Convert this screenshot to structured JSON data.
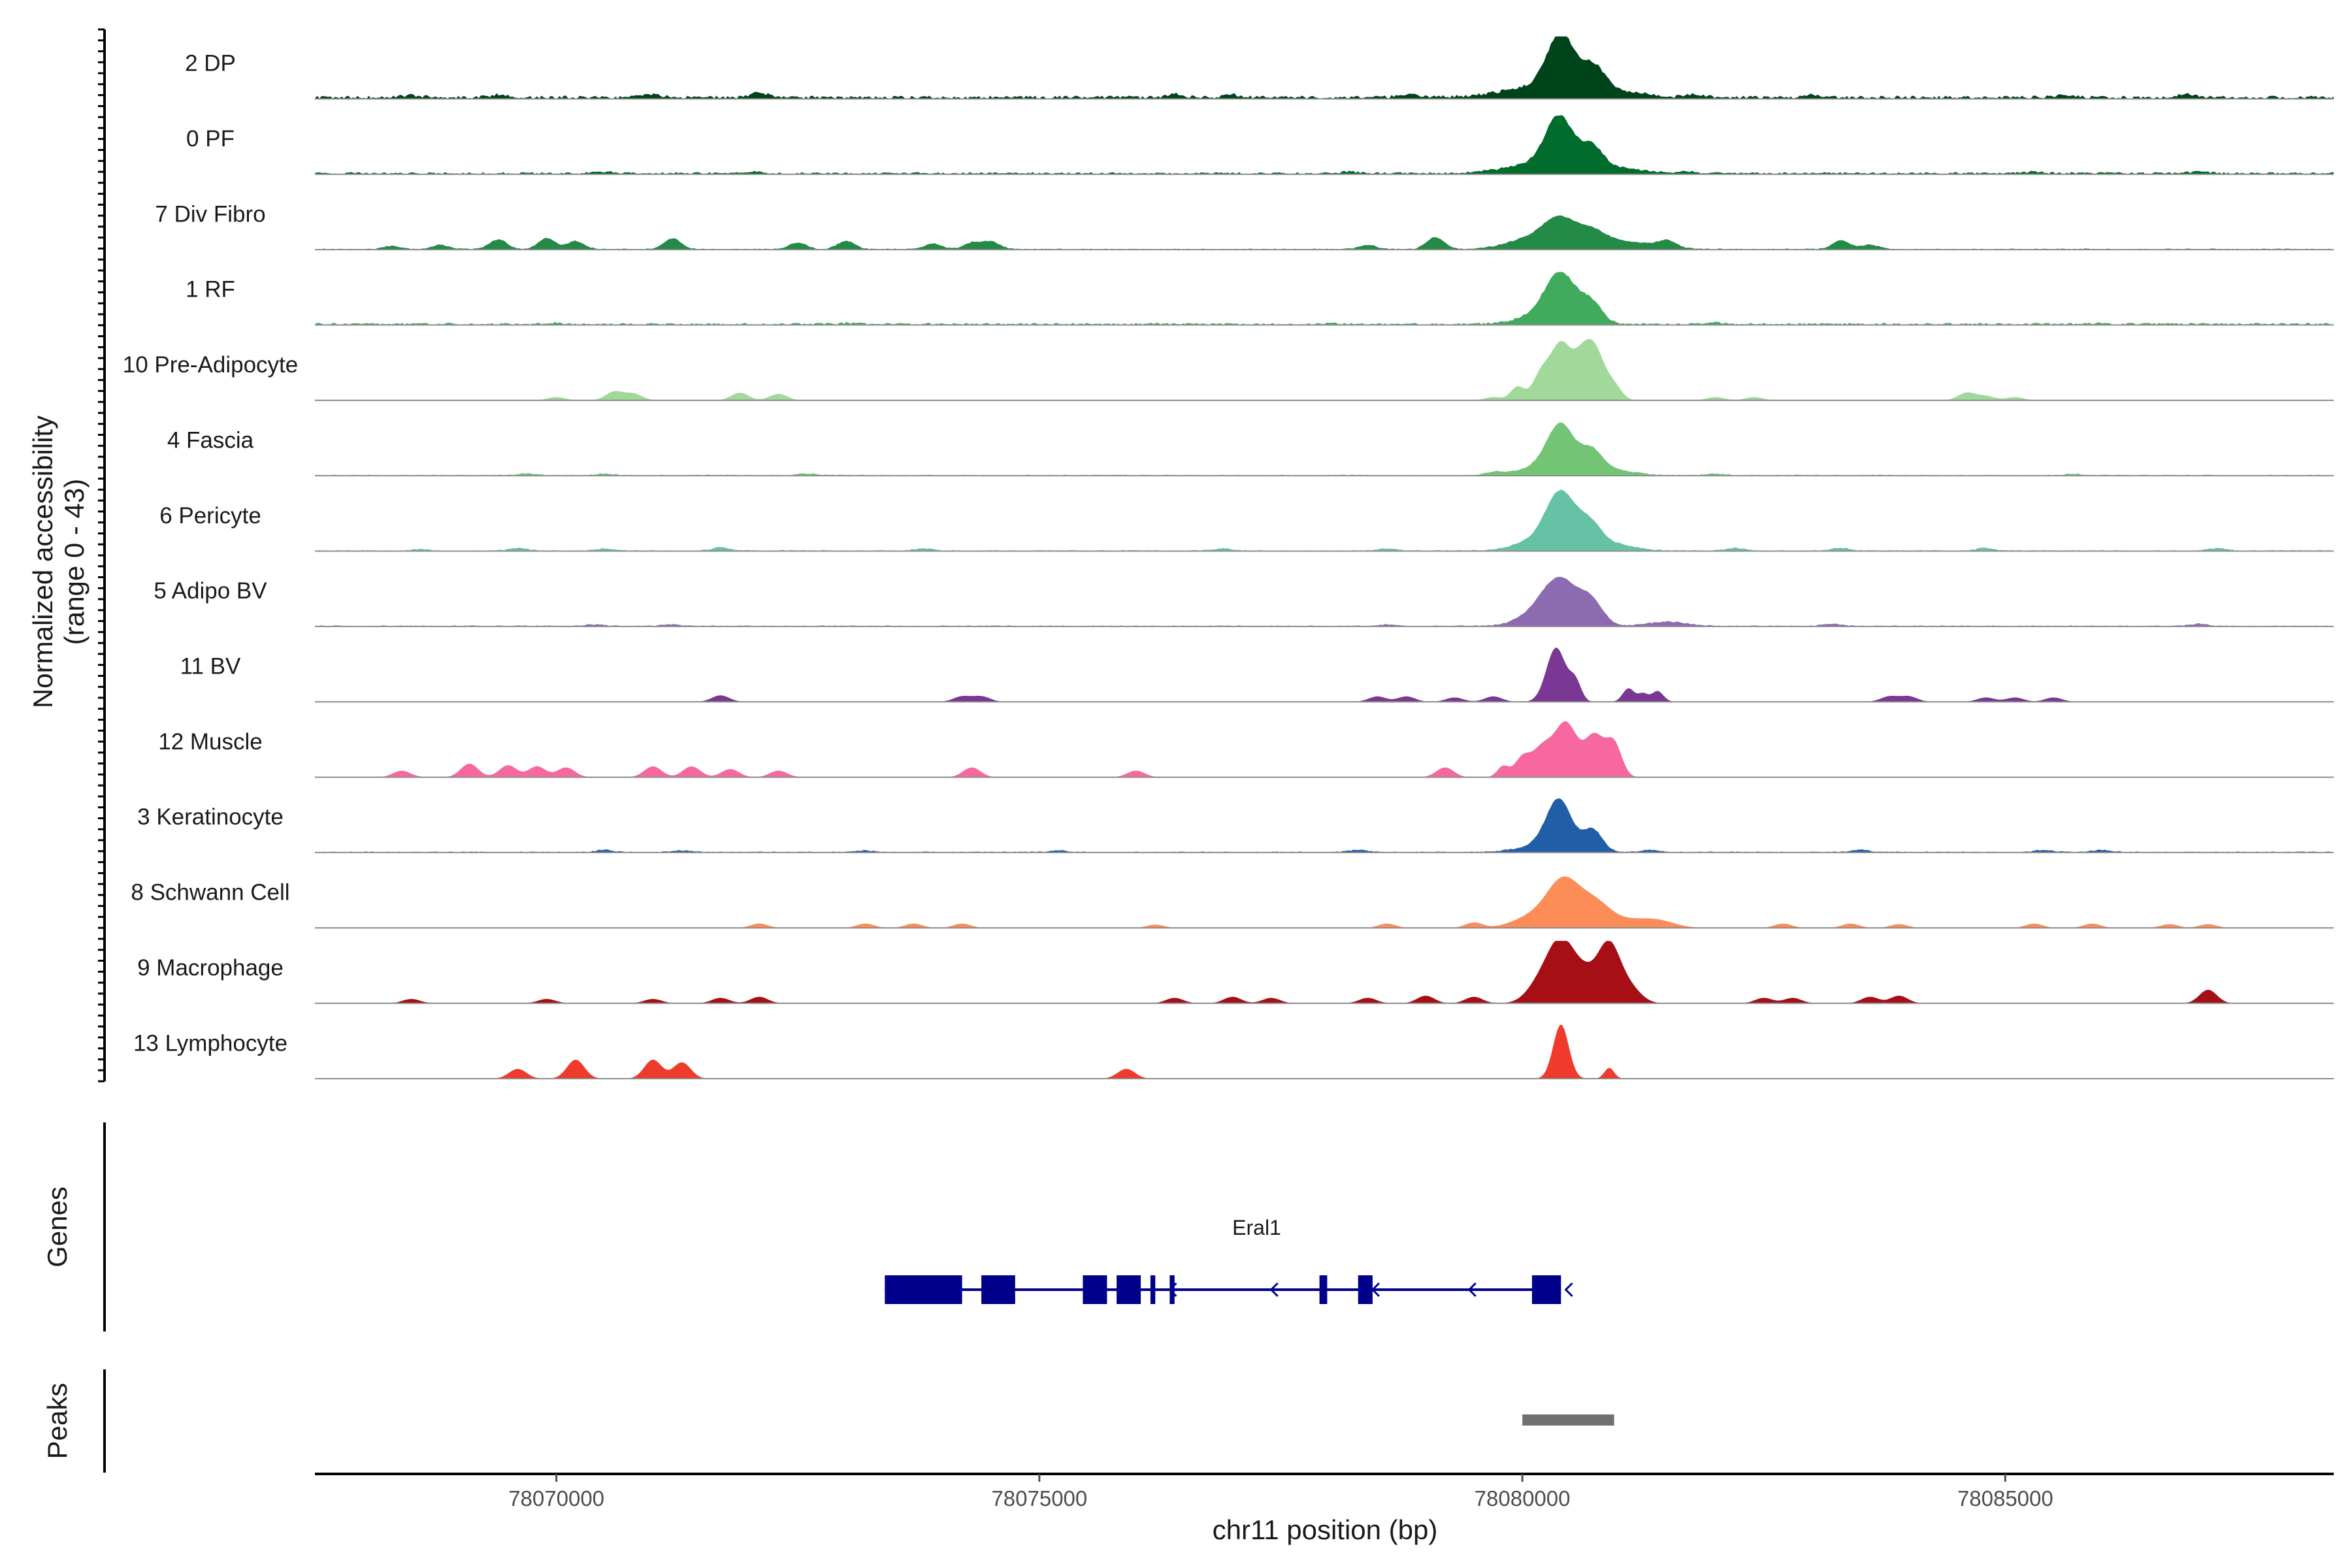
{
  "chart_data": {
    "type": "area",
    "chromosome": "chr11",
    "xlim": [
      78067500,
      78088400
    ],
    "xlabel": "chr11 position (bp)",
    "x_ticks": [
      78070000,
      78075000,
      78080000,
      78085000
    ],
    "x_tick_labels": [
      "78070000",
      "78075000",
      "78080000",
      "78085000"
    ],
    "coverage_panel": {
      "ylabel_line1": "Normalized accessibility",
      "ylabel_line2": "(range 0 - 43)",
      "ylim": [
        0,
        43
      ]
    },
    "tracks": [
      {
        "label": "2 DP",
        "color": "#00441b",
        "peaks": [
          [
            78080400,
            1.0,
            140
          ],
          [
            78080740,
            0.42,
            110
          ],
          [
            78080200,
            0.2,
            400
          ],
          [
            78080900,
            0.12,
            300
          ]
        ],
        "baseline": 0.06,
        "background": [
          [
            78068500,
            0.04
          ],
          [
            78069400,
            0.05
          ],
          [
            78071000,
            0.05
          ],
          [
            78072100,
            0.08
          ],
          [
            78076400,
            0.06
          ],
          [
            78077000,
            0.05
          ],
          [
            78078800,
            0.05
          ],
          [
            78081800,
            0.06
          ],
          [
            78083000,
            0.05
          ],
          [
            78085600,
            0.05
          ],
          [
            78086900,
            0.06
          ]
        ]
      },
      {
        "label": "0 PF",
        "color": "#006d2c",
        "peaks": [
          [
            78080380,
            0.9,
            140
          ],
          [
            78080720,
            0.38,
            110
          ],
          [
            78080200,
            0.18,
            350
          ],
          [
            78080900,
            0.1,
            300
          ]
        ],
        "baseline": 0.04,
        "background": [
          [
            78070500,
            0.03
          ],
          [
            78072000,
            0.03
          ],
          [
            78078200,
            0.03
          ],
          [
            78081700,
            0.04
          ],
          [
            78085300,
            0.03
          ],
          [
            78087000,
            0.03
          ]
        ]
      },
      {
        "label": "7 Div Fibro",
        "color": "#238b45",
        "peaks": [
          [
            78080380,
            0.45,
            160
          ],
          [
            78080700,
            0.25,
            150
          ],
          [
            78080100,
            0.2,
            250
          ],
          [
            78081000,
            0.15,
            350
          ]
        ],
        "baseline": 0.02,
        "background": [
          [
            78068300,
            0.06
          ],
          [
            78068800,
            0.08
          ],
          [
            78069400,
            0.18
          ],
          [
            78069900,
            0.2
          ],
          [
            78070200,
            0.15
          ],
          [
            78071200,
            0.2
          ],
          [
            78072500,
            0.12
          ],
          [
            78073000,
            0.15
          ],
          [
            78073900,
            0.1
          ],
          [
            78074300,
            0.12
          ],
          [
            78074500,
            0.14
          ],
          [
            78078400,
            0.08
          ],
          [
            78079100,
            0.22
          ],
          [
            78081500,
            0.12
          ],
          [
            78083300,
            0.16
          ],
          [
            78083600,
            0.08
          ]
        ]
      },
      {
        "label": "1 RF",
        "color": "#41ab5d",
        "peaks": [
          [
            78080400,
            0.85,
            160
          ],
          [
            78080720,
            0.35,
            110
          ],
          [
            78080200,
            0.15,
            250
          ]
        ],
        "baseline": 0.04,
        "background": [
          [
            78070000,
            0.02
          ],
          [
            78073000,
            0.02
          ],
          [
            78078000,
            0.02
          ],
          [
            78082000,
            0.02
          ],
          [
            78086000,
            0.02
          ]
        ]
      },
      {
        "label": "10 Pre-Adipocyte",
        "color": "#a1d99b",
        "peaks": [
          [
            78080400,
            1.0,
            100
          ],
          [
            78080750,
            0.9,
            100
          ],
          [
            78080600,
            0.6,
            90
          ],
          [
            78080200,
            0.5,
            90
          ],
          [
            78079950,
            0.25,
            70
          ],
          [
            78080950,
            0.25,
            80
          ]
        ],
        "baseline": 0.0,
        "background": [
          [
            78070000,
            0.06
          ],
          [
            78070600,
            0.16
          ],
          [
            78070800,
            0.12
          ],
          [
            78071900,
            0.14
          ],
          [
            78072300,
            0.12
          ],
          [
            78079700,
            0.06
          ],
          [
            78082000,
            0.06
          ],
          [
            78082400,
            0.06
          ],
          [
            78084600,
            0.14
          ],
          [
            78084800,
            0.08
          ],
          [
            78085100,
            0.06
          ]
        ]
      },
      {
        "label": "4 Fascia",
        "color": "#74c476",
        "peaks": [
          [
            78080400,
            0.85,
            140
          ],
          [
            78080720,
            0.4,
            110
          ],
          [
            78080200,
            0.15,
            250
          ],
          [
            78080950,
            0.1,
            200
          ]
        ],
        "baseline": 0.02,
        "background": [
          [
            78069700,
            0.03
          ],
          [
            78070500,
            0.03
          ],
          [
            78072600,
            0.03
          ],
          [
            78079700,
            0.05
          ],
          [
            78082000,
            0.03
          ],
          [
            78085700,
            0.03
          ]
        ]
      },
      {
        "label": "6 Pericyte",
        "color": "#66c2a4",
        "peaks": [
          [
            78080400,
            0.95,
            150
          ],
          [
            78080700,
            0.42,
            120
          ],
          [
            78080200,
            0.2,
            250
          ],
          [
            78080950,
            0.12,
            200
          ]
        ],
        "baseline": 0.02,
        "background": [
          [
            78068600,
            0.03
          ],
          [
            78069600,
            0.05
          ],
          [
            78070500,
            0.04
          ],
          [
            78071700,
            0.06
          ],
          [
            78073800,
            0.04
          ],
          [
            78076900,
            0.04
          ],
          [
            78078600,
            0.04
          ],
          [
            78082200,
            0.05
          ],
          [
            78083300,
            0.05
          ],
          [
            78084800,
            0.05
          ],
          [
            78087200,
            0.05
          ]
        ]
      },
      {
        "label": "5 Adipo BV",
        "color": "#8c6bb1",
        "peaks": [
          [
            78080400,
            0.8,
            180
          ],
          [
            78080720,
            0.4,
            120
          ],
          [
            78080150,
            0.2,
            200
          ],
          [
            78081500,
            0.08,
            200
          ]
        ],
        "baseline": 0.02,
        "background": [
          [
            78070400,
            0.03
          ],
          [
            78071200,
            0.03
          ],
          [
            78078600,
            0.03
          ],
          [
            78083200,
            0.04
          ],
          [
            78087000,
            0.04
          ]
        ]
      },
      {
        "label": "11 BV",
        "color": "#7a3794",
        "peaks": [
          [
            78080350,
            1.0,
            100
          ],
          [
            78080550,
            0.35,
            60
          ],
          [
            78081100,
            0.25,
            60
          ],
          [
            78081400,
            0.2,
            60
          ],
          [
            78081250,
            0.15,
            50
          ]
        ],
        "baseline": 0.0,
        "background": [
          [
            78071700,
            0.12
          ],
          [
            78074200,
            0.1
          ],
          [
            78074400,
            0.1
          ],
          [
            78078500,
            0.1
          ],
          [
            78078800,
            0.1
          ],
          [
            78079300,
            0.08
          ],
          [
            78079700,
            0.1
          ],
          [
            78083800,
            0.1
          ],
          [
            78084000,
            0.1
          ],
          [
            78084800,
            0.08
          ],
          [
            78085100,
            0.08
          ],
          [
            78085500,
            0.08
          ]
        ]
      },
      {
        "label": "12 Muscle",
        "color": "#f768a1",
        "peaks": [
          [
            78080450,
            1.0,
            120
          ],
          [
            78080750,
            0.75,
            100
          ],
          [
            78080200,
            0.5,
            100
          ],
          [
            78080950,
            0.6,
            80
          ],
          [
            78080000,
            0.35,
            80
          ],
          [
            78079800,
            0.2,
            60
          ]
        ],
        "baseline": 0.0,
        "background": [
          [
            78068400,
            0.12
          ],
          [
            78069100,
            0.25
          ],
          [
            78069500,
            0.22
          ],
          [
            78069800,
            0.2
          ],
          [
            78070100,
            0.18
          ],
          [
            78071000,
            0.2
          ],
          [
            78071400,
            0.2
          ],
          [
            78071800,
            0.15
          ],
          [
            78072300,
            0.12
          ],
          [
            78074300,
            0.18
          ],
          [
            78076000,
            0.12
          ],
          [
            78079200,
            0.18
          ]
        ]
      },
      {
        "label": "3 Keratinocyte",
        "color": "#225ea8",
        "peaks": [
          [
            78080380,
            0.9,
            130
          ],
          [
            78080730,
            0.4,
            100
          ],
          [
            78080200,
            0.12,
            250
          ]
        ],
        "baseline": 0.02,
        "background": [
          [
            78070500,
            0.04
          ],
          [
            78071300,
            0.03
          ],
          [
            78073200,
            0.03
          ],
          [
            78075200,
            0.03
          ],
          [
            78078300,
            0.04
          ],
          [
            78081300,
            0.04
          ],
          [
            78083500,
            0.04
          ],
          [
            78085400,
            0.04
          ],
          [
            78086000,
            0.04
          ]
        ]
      },
      {
        "label": "8 Schwann Cell",
        "color": "#fc8d59",
        "peaks": [
          [
            78080430,
            0.85,
            170
          ],
          [
            78080750,
            0.35,
            150
          ],
          [
            78080100,
            0.2,
            200
          ],
          [
            78081000,
            0.15,
            250
          ],
          [
            78081400,
            0.12,
            180
          ]
        ],
        "baseline": 0.0,
        "background": [
          [
            78072100,
            0.08
          ],
          [
            78073200,
            0.08
          ],
          [
            78073700,
            0.08
          ],
          [
            78074200,
            0.08
          ],
          [
            78076200,
            0.06
          ],
          [
            78078600,
            0.08
          ],
          [
            78079500,
            0.1
          ],
          [
            78082700,
            0.08
          ],
          [
            78083400,
            0.08
          ],
          [
            78083900,
            0.07
          ],
          [
            78085300,
            0.08
          ],
          [
            78085900,
            0.08
          ],
          [
            78086700,
            0.07
          ],
          [
            78087100,
            0.07
          ]
        ]
      },
      {
        "label": "9 Macrophage",
        "color": "#a50f15",
        "peaks": [
          [
            78080400,
            0.95,
            130
          ],
          [
            78080900,
            0.95,
            110
          ],
          [
            78080650,
            0.55,
            150
          ],
          [
            78080200,
            0.4,
            140
          ],
          [
            78081100,
            0.3,
            120
          ]
        ],
        "baseline": 0.0,
        "background": [
          [
            78068500,
            0.08
          ],
          [
            78069900,
            0.08
          ],
          [
            78071000,
            0.08
          ],
          [
            78071700,
            0.1
          ],
          [
            78072100,
            0.12
          ],
          [
            78076400,
            0.1
          ],
          [
            78077000,
            0.12
          ],
          [
            78077400,
            0.1
          ],
          [
            78078400,
            0.1
          ],
          [
            78079000,
            0.14
          ],
          [
            78079500,
            0.12
          ],
          [
            78082500,
            0.1
          ],
          [
            78082800,
            0.1
          ],
          [
            78083600,
            0.12
          ],
          [
            78083900,
            0.14
          ],
          [
            78087100,
            0.25
          ]
        ]
      },
      {
        "label": "13 Lymphocyte",
        "color": "#ef3b2c",
        "peaks": [
          [
            78080400,
            1.0,
            80
          ],
          [
            78080900,
            0.2,
            50
          ]
        ],
        "baseline": 0.0,
        "background": [
          [
            78069600,
            0.18
          ],
          [
            78070200,
            0.35
          ],
          [
            78071000,
            0.35
          ],
          [
            78071300,
            0.3
          ],
          [
            78075900,
            0.18
          ]
        ]
      }
    ],
    "genes_panel": {
      "ylabel": "Genes",
      "gene_name": "Eral1",
      "color": "#00008b",
      "strand": "-",
      "tx_start": 78073400,
      "tx_end": 78080400,
      "exons": [
        [
          78073400,
          78074200
        ],
        [
          78074400,
          78074750
        ],
        [
          78075450,
          78075700
        ],
        [
          78075800,
          78076050
        ],
        [
          78076150,
          78076200
        ],
        [
          78076350,
          78076400
        ],
        [
          78077900,
          78077980
        ],
        [
          78078300,
          78078450
        ],
        [
          78080100,
          78080400
        ]
      ]
    },
    "peaks_panel": {
      "ylabel": "Peaks",
      "color": "#707070",
      "peaks": [
        [
          78080000,
          78080950
        ]
      ]
    }
  }
}
